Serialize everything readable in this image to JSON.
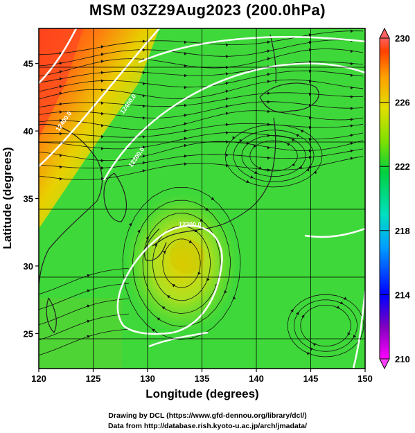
{
  "title": "MSM 03Z29Aug2023 (200.0hPa)",
  "axes": {
    "xlabel": "Longitude (degrees)",
    "ylabel": "Latitude  (degrees)",
    "xticks": [
      "120",
      "125",
      "130",
      "135",
      "140",
      "145",
      "150"
    ],
    "yticks": [
      "25",
      "30",
      "35",
      "40",
      "45"
    ],
    "xlim": [
      120,
      150
    ],
    "ylim": [
      22.4,
      47.6
    ]
  },
  "colorbar": {
    "ticks": [
      "230",
      "226",
      "222",
      "218",
      "214",
      "210"
    ],
    "range": [
      210,
      230
    ],
    "colors": [
      "#ff00ff",
      "#8000c0",
      "#0000ff",
      "#00a0ff",
      "#00e0c0",
      "#00d040",
      "#80e000",
      "#e0e000",
      "#ffa000",
      "#ff4000",
      "#ff6060"
    ]
  },
  "chart_data": {
    "type": "heatmap",
    "title": "MSM 03Z29Aug2023 (200.0hPa)",
    "xlabel": "Longitude (degrees)",
    "ylabel": "Latitude  (degrees)",
    "xlim": [
      120,
      150
    ],
    "ylim": [
      22.4,
      47.6
    ],
    "value_range": [
      210,
      230
    ],
    "contour_labels": [
      "12400.0",
      "12400.0",
      "12300.0",
      "12300.0"
    ],
    "features": [
      {
        "kind": "warm-region",
        "lon": 121,
        "lat": 44,
        "value": 229
      },
      {
        "kind": "anticyclone-center",
        "lon": 134,
        "lat": 31.5,
        "value": 225
      },
      {
        "kind": "vortex",
        "lon": 141,
        "lat": 38.5,
        "value": 222
      }
    ]
  },
  "footer": {
    "line1": "Drawing by DCL (https://www.gfd-dennou.org/library/dcl/)",
    "line2": "Data from http://database.rish.kyoto-u.ac.jp/arch/jmadata/"
  }
}
